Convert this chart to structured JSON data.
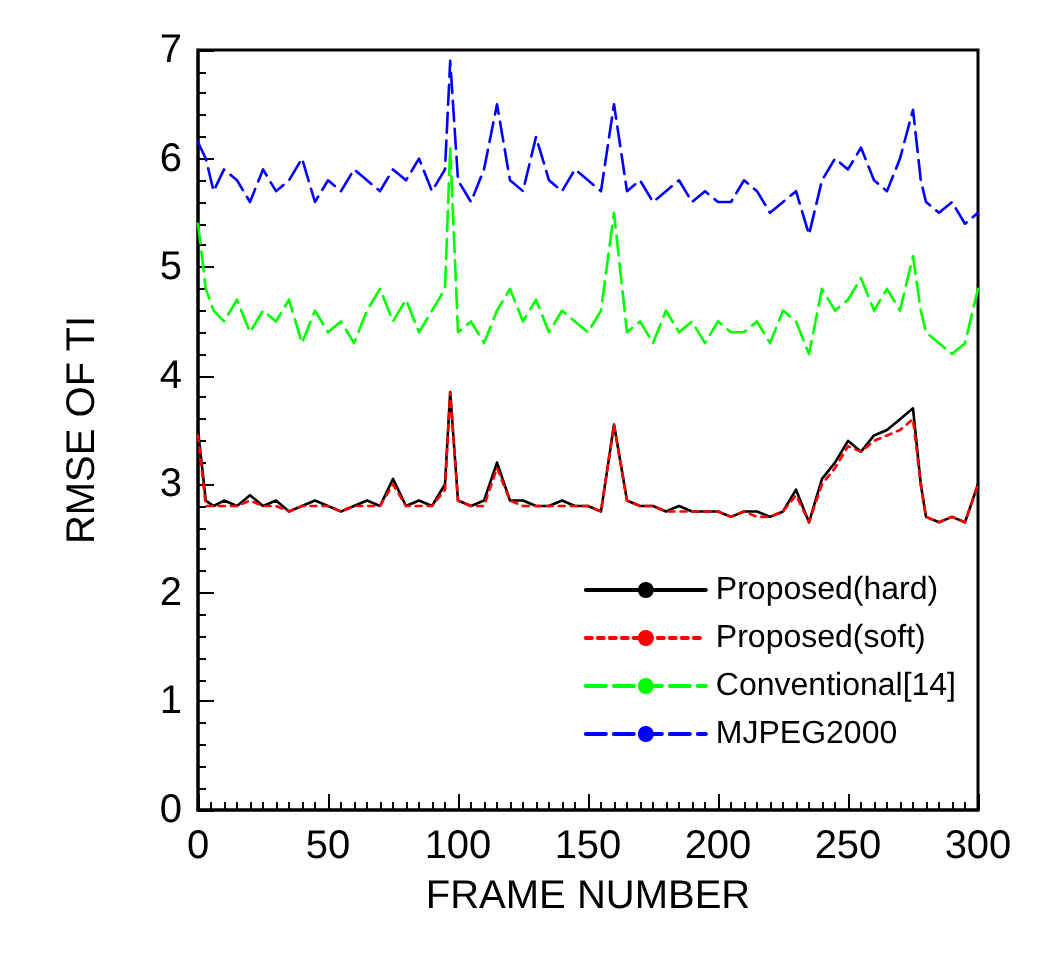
{
  "chart_data": {
    "type": "line",
    "xlabel": "FRAME NUMBER",
    "ylabel": "RMSE OF TI",
    "x": [
      0,
      3,
      6,
      10,
      15,
      20,
      25,
      30,
      35,
      40,
      45,
      50,
      55,
      60,
      65,
      70,
      75,
      80,
      85,
      90,
      95,
      97,
      100,
      105,
      110,
      115,
      120,
      125,
      130,
      135,
      140,
      145,
      150,
      155,
      160,
      165,
      170,
      175,
      180,
      185,
      190,
      195,
      200,
      205,
      210,
      215,
      220,
      225,
      230,
      235,
      240,
      245,
      250,
      255,
      260,
      265,
      270,
      275,
      278,
      280,
      285,
      290,
      295,
      300
    ],
    "series": [
      {
        "name": "Proposed(hard)",
        "color": "#000000",
        "line_style": "solid",
        "values": [
          3.5,
          2.85,
          2.8,
          2.85,
          2.8,
          2.9,
          2.8,
          2.85,
          2.75,
          2.8,
          2.85,
          2.8,
          2.75,
          2.8,
          2.85,
          2.8,
          3.05,
          2.8,
          2.85,
          2.8,
          3.0,
          3.85,
          2.85,
          2.8,
          2.85,
          3.2,
          2.85,
          2.85,
          2.8,
          2.8,
          2.85,
          2.8,
          2.8,
          2.75,
          3.55,
          2.85,
          2.8,
          2.8,
          2.75,
          2.8,
          2.75,
          2.75,
          2.75,
          2.7,
          2.75,
          2.75,
          2.7,
          2.75,
          2.95,
          2.65,
          3.05,
          3.2,
          3.4,
          3.3,
          3.45,
          3.5,
          3.6,
          3.7,
          3.0,
          2.7,
          2.65,
          2.7,
          2.65,
          3.0
        ]
      },
      {
        "name": "Proposed(soft)",
        "color": "#ff0000",
        "line_style": "dotted",
        "values": [
          3.45,
          2.8,
          2.8,
          2.8,
          2.8,
          2.85,
          2.8,
          2.8,
          2.75,
          2.8,
          2.8,
          2.8,
          2.75,
          2.8,
          2.8,
          2.8,
          3.0,
          2.8,
          2.8,
          2.8,
          2.95,
          3.85,
          2.85,
          2.8,
          2.8,
          3.15,
          2.85,
          2.8,
          2.8,
          2.8,
          2.8,
          2.8,
          2.8,
          2.75,
          3.55,
          2.85,
          2.8,
          2.8,
          2.75,
          2.75,
          2.75,
          2.75,
          2.75,
          2.7,
          2.75,
          2.7,
          2.7,
          2.75,
          2.9,
          2.65,
          3.0,
          3.15,
          3.35,
          3.3,
          3.4,
          3.45,
          3.5,
          3.6,
          3.0,
          2.7,
          2.65,
          2.7,
          2.65,
          3.0
        ]
      },
      {
        "name": "Conventional[14]",
        "color": "#00ff00",
        "line_style": "dashed",
        "values": [
          5.4,
          4.8,
          4.6,
          4.5,
          4.7,
          4.4,
          4.6,
          4.5,
          4.7,
          4.3,
          4.6,
          4.4,
          4.5,
          4.3,
          4.6,
          4.8,
          4.5,
          4.7,
          4.4,
          4.6,
          4.8,
          6.1,
          4.4,
          4.5,
          4.3,
          4.6,
          4.8,
          4.5,
          4.7,
          4.4,
          4.6,
          4.5,
          4.4,
          4.6,
          5.5,
          4.4,
          4.5,
          4.3,
          4.6,
          4.4,
          4.5,
          4.3,
          4.5,
          4.4,
          4.4,
          4.5,
          4.3,
          4.6,
          4.5,
          4.2,
          4.8,
          4.6,
          4.7,
          4.9,
          4.6,
          4.8,
          4.6,
          5.1,
          4.6,
          4.4,
          4.3,
          4.2,
          4.3,
          4.8
        ]
      },
      {
        "name": "MJPEG2000",
        "color": "#0000ff",
        "line_style": "dashed",
        "values": [
          6.15,
          6.0,
          5.7,
          5.9,
          5.8,
          5.6,
          5.9,
          5.7,
          5.8,
          6.0,
          5.6,
          5.8,
          5.7,
          5.9,
          5.8,
          5.7,
          5.9,
          5.8,
          6.0,
          5.7,
          5.9,
          6.9,
          5.8,
          5.6,
          5.9,
          6.5,
          5.8,
          5.7,
          6.2,
          5.8,
          5.7,
          5.9,
          5.8,
          5.7,
          6.5,
          5.7,
          5.8,
          5.6,
          5.7,
          5.8,
          5.6,
          5.7,
          5.6,
          5.6,
          5.8,
          5.7,
          5.5,
          5.6,
          5.7,
          5.3,
          5.8,
          6.0,
          5.9,
          6.1,
          5.8,
          5.7,
          6.0,
          6.45,
          5.8,
          5.6,
          5.5,
          5.6,
          5.4,
          5.5
        ]
      }
    ],
    "xlim": [
      0,
      300
    ],
    "xticks": [
      0,
      50,
      100,
      150,
      200,
      250,
      300
    ],
    "ylim": [
      0,
      7
    ],
    "yticks": [
      0,
      1,
      2,
      3,
      4,
      5,
      6,
      7
    ],
    "legend": "bottom right",
    "marker": "none",
    "grid": false
  }
}
